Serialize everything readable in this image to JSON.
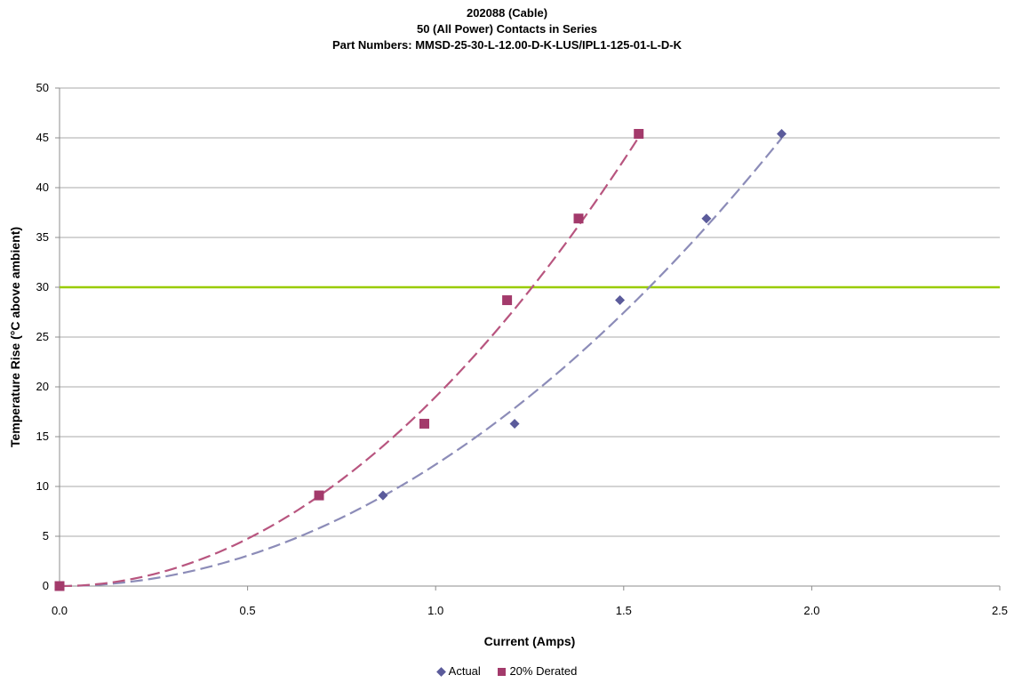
{
  "chart_data": {
    "type": "scatter",
    "title_lines": [
      "202088 (Cable)",
      "50 (All Power) Contacts in Series",
      "Part Numbers: MMSD-25-30-L-12.00-D-K-LUS/IPL1-125-01-L-D-K"
    ],
    "xlabel": "Current (Amps)",
    "ylabel": "Temperature Rise (°C above ambient)",
    "xlim": [
      0,
      2.5
    ],
    "ylim": [
      0,
      50
    ],
    "x_ticks": [
      "0.0",
      "0.5",
      "1.0",
      "1.5",
      "2.0",
      "2.5"
    ],
    "y_ticks": [
      "0",
      "5",
      "10",
      "15",
      "20",
      "25",
      "30",
      "35",
      "40",
      "45",
      "50"
    ],
    "grid": "horizontal",
    "legend_position": "bottom",
    "reference_line": {
      "y": 30,
      "color": "#99cc00"
    },
    "series": [
      {
        "name": "Actual",
        "marker": "diamond",
        "color": "#5b5b9b",
        "trend_color": "#8c8cb8",
        "x": [
          0.0,
          0.86,
          1.21,
          1.49,
          1.72,
          1.92
        ],
        "y": [
          0.0,
          9.1,
          16.3,
          28.7,
          36.9,
          45.4
        ],
        "trend_coef": 12.2
      },
      {
        "name": "20% Derated",
        "marker": "square",
        "color": "#a33a6b",
        "trend_color": "#b8557f",
        "x": [
          0.0,
          0.69,
          0.97,
          1.19,
          1.38,
          1.54
        ],
        "y": [
          0.0,
          9.1,
          16.3,
          28.7,
          36.9,
          45.4
        ],
        "trend_coef": 19.0
      }
    ]
  }
}
